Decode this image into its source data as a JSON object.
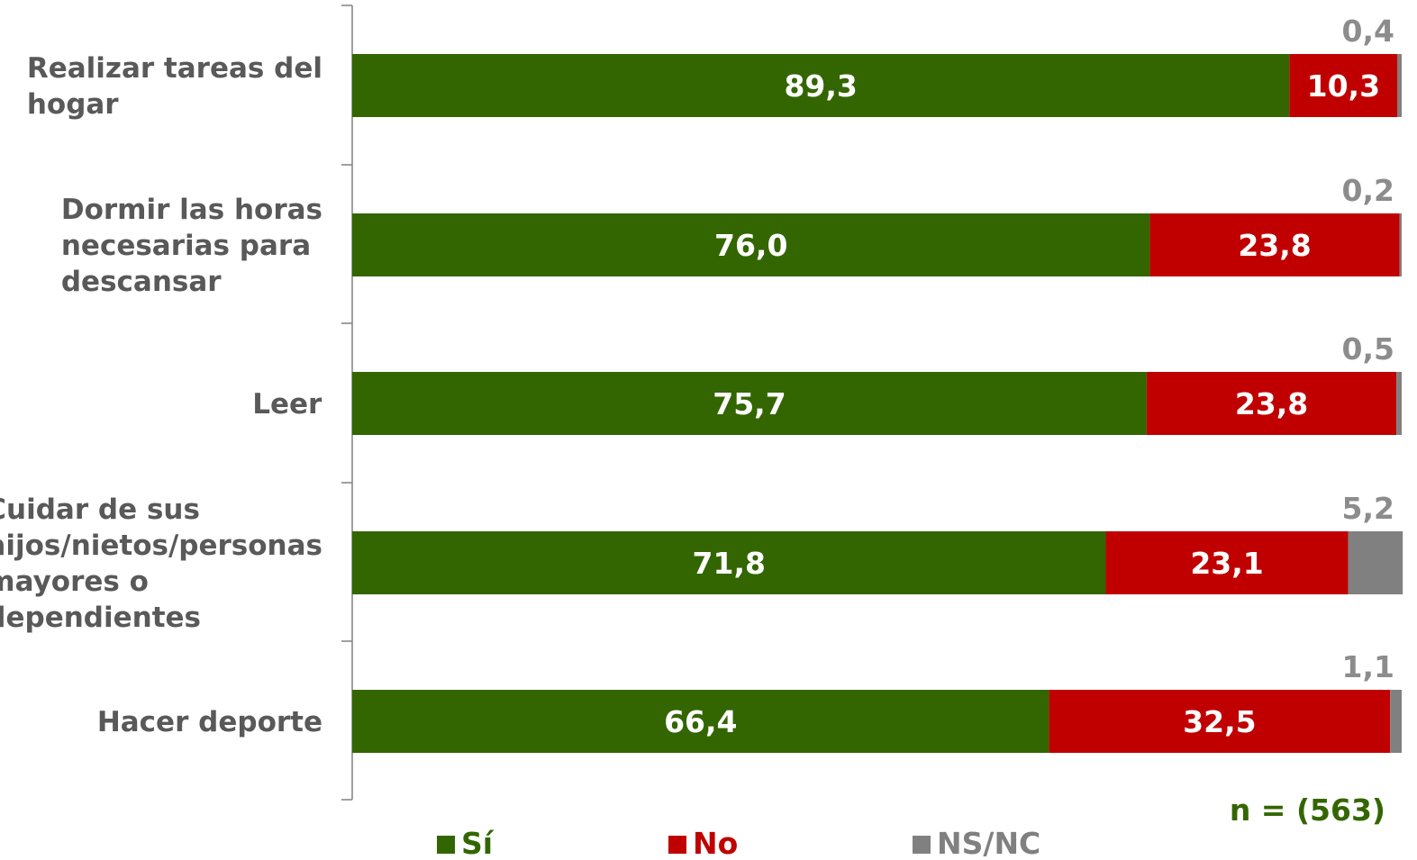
{
  "chart_data": {
    "type": "bar",
    "orientation": "horizontal",
    "stacked": true,
    "categories": [
      [
        "Realizar tareas del",
        "hogar"
      ],
      [
        "Dormir las horas",
        "necesarias para",
        "descansar"
      ],
      [
        "Leer"
      ],
      [
        "Cuidar de sus",
        "hijos/nietos/personas",
        "mayores o",
        "dependientes"
      ],
      [
        "Hacer deporte"
      ]
    ],
    "series": [
      {
        "name": "Sí",
        "color": "#336600",
        "values": [
          89.3,
          76.0,
          75.7,
          71.8,
          66.4
        ],
        "labels": [
          "89,3",
          "76,0",
          "75,7",
          "71,8",
          "66,4"
        ]
      },
      {
        "name": "No",
        "color": "#c00000",
        "values": [
          10.3,
          23.8,
          23.8,
          23.1,
          32.5
        ],
        "labels": [
          "10,3",
          "23,8",
          "23,8",
          "23,1",
          "32,5"
        ]
      },
      {
        "name": "NS/NC",
        "color": "#808080",
        "values": [
          0.4,
          0.2,
          0.5,
          5.2,
          1.1
        ],
        "labels": [
          "0,4",
          "0,2",
          "0,5",
          "5,2",
          "1,1"
        ]
      }
    ],
    "xlim": [
      0,
      100
    ],
    "grid": false,
    "legend_position": "bottom",
    "sample_note": "n = (563)"
  },
  "colors": {
    "label_text": "#595959",
    "outside_value": "#8c8c8c",
    "note": "#336600",
    "axis": "#808080"
  }
}
